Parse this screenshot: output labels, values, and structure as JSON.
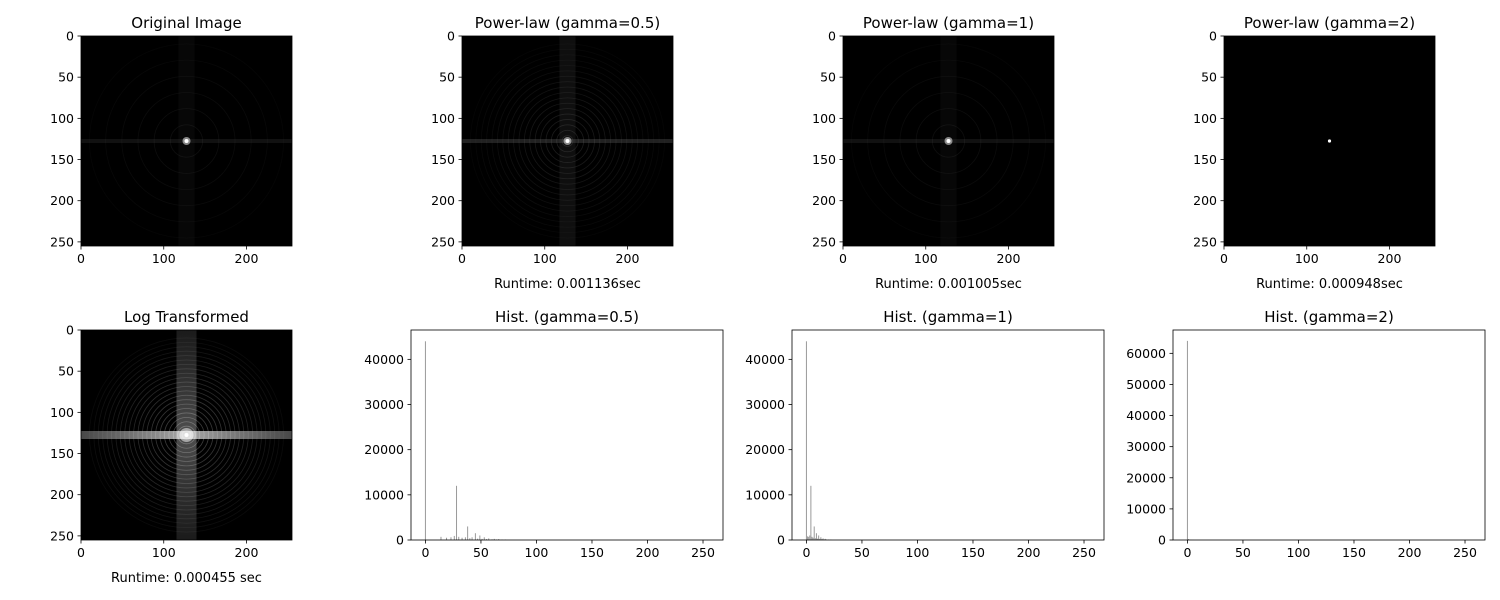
{
  "chart_data": [
    {
      "type": "image",
      "title": "Original Image",
      "variant": "orig",
      "xlim": [
        0,
        255
      ],
      "ylim": [
        0,
        255
      ],
      "xticks": [
        0,
        100,
        200
      ],
      "yticks": [
        0,
        50,
        100,
        150,
        200,
        250
      ],
      "caption": ""
    },
    {
      "type": "image",
      "title": "Power-law (gamma=0.5)",
      "variant": "g05",
      "xlim": [
        0,
        255
      ],
      "ylim": [
        0,
        255
      ],
      "xticks": [
        0,
        100,
        200
      ],
      "yticks": [
        0,
        50,
        100,
        150,
        200,
        250
      ],
      "caption": "Runtime: 0.001136sec"
    },
    {
      "type": "image",
      "title": "Power-law (gamma=1)",
      "variant": "g1",
      "xlim": [
        0,
        255
      ],
      "ylim": [
        0,
        255
      ],
      "xticks": [
        0,
        100,
        200
      ],
      "yticks": [
        0,
        50,
        100,
        150,
        200,
        250
      ],
      "caption": "Runtime: 0.001005sec"
    },
    {
      "type": "image",
      "title": "Power-law (gamma=2)",
      "variant": "g2",
      "xlim": [
        0,
        255
      ],
      "ylim": [
        0,
        255
      ],
      "xticks": [
        0,
        100,
        200
      ],
      "yticks": [
        0,
        50,
        100,
        150,
        200,
        250
      ],
      "caption": "Runtime: 0.000948sec"
    },
    {
      "type": "image",
      "title": "Log Transformed",
      "variant": "log",
      "xlim": [
        0,
        255
      ],
      "ylim": [
        0,
        255
      ],
      "xticks": [
        0,
        100,
        200
      ],
      "yticks": [
        0,
        50,
        100,
        150,
        200,
        250
      ],
      "caption": "Runtime: 0.000455 sec"
    },
    {
      "type": "bar",
      "title": "Hist. (gamma=0.5)",
      "xlim": [
        -13,
        268
      ],
      "ylim": [
        0,
        46500
      ],
      "xticks": [
        0,
        50,
        100,
        150,
        200,
        250
      ],
      "yticks": [
        0,
        10000,
        20000,
        30000,
        40000
      ],
      "bins": [
        0,
        14,
        19,
        23,
        26,
        28,
        30,
        33,
        36,
        38,
        40,
        42,
        45,
        47,
        49,
        51,
        53,
        55,
        57,
        60,
        62,
        64,
        66,
        69,
        72
      ],
      "counts": [
        44000,
        700,
        500,
        600,
        900,
        12000,
        700,
        500,
        600,
        3000,
        400,
        600,
        1500,
        300,
        1000,
        250,
        600,
        200,
        350,
        150,
        250,
        120,
        200,
        100,
        100
      ]
    },
    {
      "type": "bar",
      "title": "Hist. (gamma=1)",
      "xlim": [
        -13,
        268
      ],
      "ylim": [
        0,
        46500
      ],
      "xticks": [
        0,
        50,
        100,
        150,
        200,
        250
      ],
      "yticks": [
        0,
        10000,
        20000,
        30000,
        40000
      ],
      "bins": [
        0,
        1,
        2,
        3,
        4,
        5,
        6,
        7,
        8,
        9,
        10,
        11,
        12,
        13,
        14,
        15,
        16,
        17,
        18,
        20,
        22
      ],
      "counts": [
        44000,
        800,
        700,
        1000,
        12000,
        700,
        500,
        3000,
        400,
        1500,
        300,
        1000,
        250,
        600,
        200,
        350,
        150,
        250,
        120,
        100,
        80
      ]
    },
    {
      "type": "bar",
      "title": "Hist. (gamma=2)",
      "xlim": [
        -13,
        268
      ],
      "ylim": [
        0,
        67500
      ],
      "xticks": [
        0,
        50,
        100,
        150,
        200,
        250
      ],
      "yticks": [
        0,
        10000,
        20000,
        30000,
        40000,
        50000,
        60000
      ],
      "bins": [
        0,
        1,
        2,
        3,
        4,
        5
      ],
      "counts": [
        64000,
        300,
        120,
        60,
        30,
        20
      ]
    }
  ]
}
